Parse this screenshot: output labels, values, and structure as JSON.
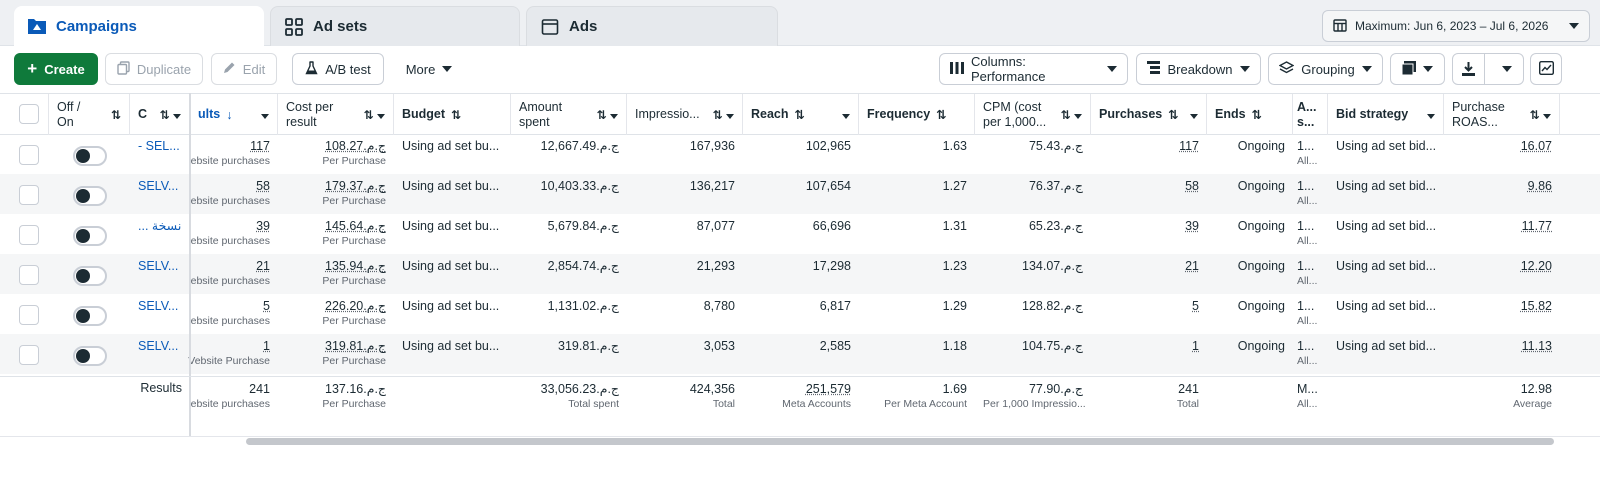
{
  "tabs": [
    {
      "label": "Campaigns",
      "icon": "folder-icon",
      "active": true
    },
    {
      "label": "Ad sets",
      "icon": "grid-icon",
      "active": false
    },
    {
      "label": "Ads",
      "icon": "window-icon",
      "active": false
    }
  ],
  "date_range": {
    "label": "Maximum: Jun 6, 2023 – Jul 6, 2026"
  },
  "toolbar": {
    "create": "Create",
    "duplicate": "Duplicate",
    "edit": "Edit",
    "ab_test": "A/B test",
    "more": "More",
    "columns": "Columns: Performance",
    "breakdown": "Breakdown",
    "grouping": "Grouping"
  },
  "headers": {
    "offon": "Off / On",
    "campaign": "C",
    "results": "ults",
    "cost_per_result": "Cost per result",
    "budget": "Budget",
    "amount_spent": "Amount spent",
    "impressions": "Impressio...",
    "reach": "Reach",
    "frequency": "Frequency",
    "cpm": "CPM (cost per 1,000...",
    "purchases": "Purchases",
    "ends": "Ends",
    "attribution": "A... s...",
    "bid_strategy": "Bid strategy",
    "roas": "Purchase ROAS..."
  },
  "rows": [
    {
      "name": "- SEL...",
      "results": "117",
      "results_sub": "ebsite purchases",
      "cpr": "108.27.ج.م",
      "cpr_sub": "Per Purchase",
      "budget": "Using ad set bu...",
      "spent": "12,667.49.ج.م",
      "impressions": "167,936",
      "reach": "102,965",
      "frequency": "1.63",
      "cpm": "75.43.ج.م",
      "purchases": "117",
      "ends": "Ongoing",
      "attr": "1...",
      "attr_sub": "All...",
      "bid": "Using ad set bid...",
      "roas": "16.07"
    },
    {
      "name": "SELV...",
      "results": "58",
      "results_sub": "ebsite purchases",
      "cpr": "179.37.ج.م",
      "cpr_sub": "Per Purchase",
      "budget": "Using ad set bu...",
      "spent": "10,403.33.ج.م",
      "impressions": "136,217",
      "reach": "107,654",
      "frequency": "1.27",
      "cpm": "76.37.ج.م",
      "purchases": "58",
      "ends": "Ongoing",
      "attr": "1...",
      "attr_sub": "All...",
      "bid": "Using ad set bid...",
      "roas": "9.86"
    },
    {
      "name": "... نسخة",
      "results": "39",
      "results_sub": "ebsite purchases",
      "cpr": "145.64.ج.م",
      "cpr_sub": "Per Purchase",
      "budget": "Using ad set bu...",
      "spent": "5,679.84.ج.م",
      "impressions": "87,077",
      "reach": "66,696",
      "frequency": "1.31",
      "cpm": "65.23.ج.م",
      "purchases": "39",
      "ends": "Ongoing",
      "attr": "1...",
      "attr_sub": "All...",
      "bid": "Using ad set bid...",
      "roas": "11.77"
    },
    {
      "name": "SELV...",
      "results": "21",
      "results_sub": "ebsite purchases",
      "cpr": "135.94.ج.م",
      "cpr_sub": "Per Purchase",
      "budget": "Using ad set bu...",
      "spent": "2,854.74.ج.م",
      "impressions": "21,293",
      "reach": "17,298",
      "frequency": "1.23",
      "cpm": "134.07.ج.م",
      "purchases": "21",
      "ends": "Ongoing",
      "attr": "1...",
      "attr_sub": "All...",
      "bid": "Using ad set bid...",
      "roas": "12.20"
    },
    {
      "name": "SELV...",
      "results": "5",
      "results_sub": "ebsite purchases",
      "cpr": "226.20.ج.م",
      "cpr_sub": "Per Purchase",
      "budget": "Using ad set bu...",
      "spent": "1,131.02.ج.م",
      "impressions": "8,780",
      "reach": "6,817",
      "frequency": "1.29",
      "cpm": "128.82.ج.م",
      "purchases": "5",
      "ends": "Ongoing",
      "attr": "1...",
      "attr_sub": "All...",
      "bid": "Using ad set bid...",
      "roas": "15.82"
    },
    {
      "name": "SELV...",
      "results": "1",
      "results_sub": "Vebsite Purchase",
      "cpr": "319.81.ج.م",
      "cpr_sub": "Per Purchase",
      "budget": "Using ad set bu...",
      "spent": "319.81.ج.م",
      "impressions": "3,053",
      "reach": "2,585",
      "frequency": "1.18",
      "cpm": "104.75.ج.م",
      "purchases": "1",
      "ends": "Ongoing",
      "attr": "1...",
      "attr_sub": "All...",
      "bid": "Using ad set bid...",
      "roas": "11.13"
    }
  ],
  "totals": {
    "label": "Results",
    "results": "241",
    "results_sub": "ebsite purchases",
    "cpr": "137.16.ج.م",
    "cpr_sub": "Per Purchase",
    "spent": "33,056.23.ج.م",
    "spent_sub": "Total spent",
    "impressions": "424,356",
    "impressions_sub": "Total",
    "reach": "251,579",
    "reach_sub": "Meta Accounts",
    "frequency": "1.69",
    "frequency_sub": "Per Meta Account",
    "cpm": "77.90.ج.م",
    "cpm_sub": "Per 1,000 Impressio...",
    "purchases": "241",
    "purchases_sub": "Total",
    "attr": "M...",
    "attr_sub": "All...",
    "roas": "12.98",
    "roas_sub": "Average"
  },
  "colors": {
    "accent": "#0a5ab8",
    "create": "#0f7a3b",
    "row_alt": "#f5f6f7"
  }
}
